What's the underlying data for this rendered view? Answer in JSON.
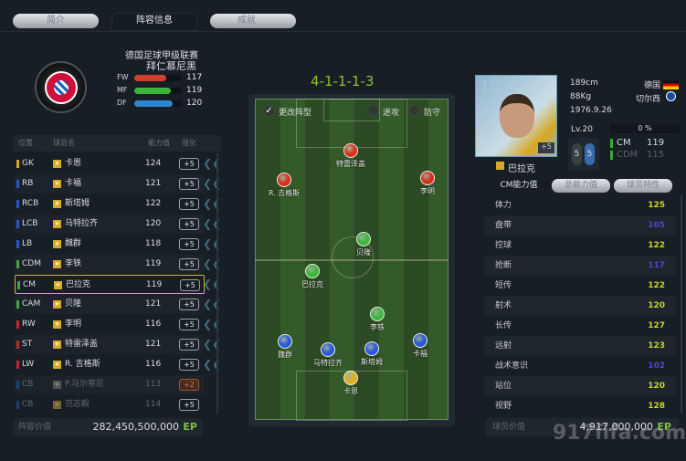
{
  "tabs": [
    "简介",
    "阵容信息",
    "成就"
  ],
  "team": {
    "league": "德国足球甲级联赛",
    "name": "拜仁慕尼黑",
    "ratings": [
      {
        "label": "FW",
        "value": 117,
        "color": "#d2402c"
      },
      {
        "label": "MF",
        "value": 119,
        "color": "#3cb43a"
      },
      {
        "label": "DF",
        "value": 120,
        "color": "#2f86d0"
      }
    ]
  },
  "table": {
    "headers": [
      "位置",
      "球员名",
      "能力值",
      "强化"
    ],
    "rows": [
      {
        "pos": "GK",
        "name": "卡恩",
        "value": "124",
        "plus": "+5",
        "color": "#d4a820"
      },
      {
        "pos": "RB",
        "name": "卡福",
        "value": "121",
        "plus": "+5",
        "color": "#2a55c8"
      },
      {
        "pos": "RCB",
        "name": "斯塔姆",
        "value": "122",
        "plus": "+5",
        "color": "#2a55c8"
      },
      {
        "pos": "LCB",
        "name": "马特拉齐",
        "value": "120",
        "plus": "+5",
        "color": "#2a55c8"
      },
      {
        "pos": "LB",
        "name": "魏群",
        "value": "118",
        "plus": "+5",
        "color": "#2a55c8"
      },
      {
        "pos": "CDM",
        "name": "李铁",
        "value": "119",
        "plus": "+5",
        "color": "#3aa83a"
      },
      {
        "pos": "CM",
        "name": "巴拉克",
        "value": "119",
        "plus": "+5",
        "color": "#3aa83a"
      },
      {
        "pos": "CAM",
        "name": "贝隆",
        "value": "121",
        "plus": "+5",
        "color": "#3aa83a"
      },
      {
        "pos": "RW",
        "name": "李明",
        "value": "116",
        "plus": "+5",
        "color": "#c0282a"
      },
      {
        "pos": "ST",
        "name": "特雷泽盖",
        "value": "121",
        "plus": "+5",
        "color": "#c0282a"
      },
      {
        "pos": "LW",
        "name": "R. 吉格斯",
        "value": "116",
        "plus": "+5",
        "color": "#c0282a"
      },
      {
        "pos": "CB",
        "name": "P.马尔蒂尼",
        "value": "113",
        "plus": "+2",
        "color": "#2a55c8"
      },
      {
        "pos": "CB",
        "name": "范志毅",
        "value": "114",
        "plus": "+5",
        "color": "#2a55c8"
      }
    ]
  },
  "squad_value": {
    "label": "阵容价值",
    "value": "282,450,500,000",
    "unit": "EP"
  },
  "formation": {
    "name": "4-1-1-1-3",
    "change_label": "更改阵型",
    "attack_label": "进攻",
    "defend_label": "防守",
    "players": [
      {
        "name": "特雷泽盖",
        "color": "#d9301c"
      },
      {
        "name": "R. 吉格斯",
        "color": "#d9301c"
      },
      {
        "name": "李明",
        "color": "#d9301c"
      },
      {
        "name": "贝隆",
        "color": "#3cb83a"
      },
      {
        "name": "巴拉克",
        "color": "#3cb83a"
      },
      {
        "name": "李铁",
        "color": "#3cb83a"
      },
      {
        "name": "魏群",
        "color": "#2a5ad8"
      },
      {
        "name": "马特拉齐",
        "color": "#2a5ad8"
      },
      {
        "name": "斯塔姆",
        "color": "#2a5ad8"
      },
      {
        "name": "卡福",
        "color": "#2a5ad8"
      },
      {
        "name": "卡恩",
        "color": "#e0b020"
      }
    ]
  },
  "player": {
    "number": "10",
    "plus": "+5",
    "name": "巴拉克",
    "height": "189cm",
    "weight": "88Kg",
    "birth": "1976.9.26",
    "nation": "德国",
    "club": "切尔西",
    "level": "Lv.20",
    "exp": "0 %",
    "exp_fraction": 0,
    "foot_left": "5",
    "foot_right": "5",
    "positions": [
      {
        "pos": "CM",
        "value": "119"
      },
      {
        "pos": "CDM",
        "value": "115"
      }
    ],
    "tabs": [
      "CM能力值",
      "总能力值",
      "球员特性"
    ],
    "attributes": [
      {
        "name": "体力",
        "value": "125",
        "color": "#c8d820"
      },
      {
        "name": "盘带",
        "value": "105",
        "color": "#4a4ad0"
      },
      {
        "name": "控球",
        "value": "122",
        "color": "#c8d820"
      },
      {
        "name": "抢断",
        "value": "117",
        "color": "#4a4ad0"
      },
      {
        "name": "短传",
        "value": "122",
        "color": "#c8d820"
      },
      {
        "name": "射术",
        "value": "120",
        "color": "#c8d820"
      },
      {
        "name": "长传",
        "value": "127",
        "color": "#c8d820"
      },
      {
        "name": "远射",
        "value": "123",
        "color": "#c8d820"
      },
      {
        "name": "战术意识",
        "value": "102",
        "color": "#4a4ad0"
      },
      {
        "name": "站位",
        "value": "120",
        "color": "#c8d820"
      },
      {
        "name": "视野",
        "value": "128",
        "color": "#c8d820"
      }
    ],
    "value_label": "球员价值",
    "value": "4,917,000,000",
    "unit": "EP"
  },
  "watermark": "917fifa.com"
}
